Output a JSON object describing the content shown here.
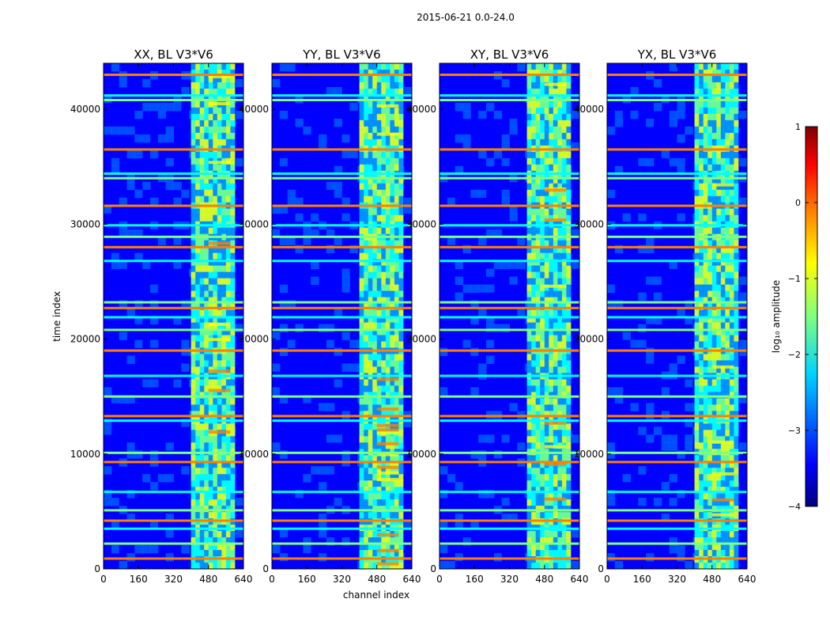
{
  "figure_title": "2015-06-21 0.0-24.0",
  "colors": {
    "background": "#ffffff",
    "axes": "#000000",
    "colormap": [
      "#00007f",
      "#0000ff",
      "#007fff",
      "#00ffff",
      "#7fff7f",
      "#ffff00",
      "#ff7f00",
      "#ff0000",
      "#7f0000"
    ]
  },
  "chart_data": {
    "type": "heatmap",
    "xlabel": "channel index",
    "ylabel": "time index",
    "xlim": [
      0,
      640
    ],
    "ylim": [
      0,
      44000
    ],
    "xticks": [
      0,
      160,
      320,
      480,
      640
    ],
    "yticks": [
      0,
      10000,
      20000,
      30000,
      40000
    ],
    "panels": [
      {
        "title": "XX, BL V3*V6",
        "polarization": "XX"
      },
      {
        "title": "YY, BL V3*V6",
        "polarization": "YY"
      },
      {
        "title": "XY, BL V3*V6",
        "polarization": "XY"
      },
      {
        "title": "YX, BL V3*V6",
        "polarization": "YX"
      }
    ],
    "bright_channel_band": [
      400,
      600
    ],
    "hot_channel_band": [
      480,
      580
    ],
    "flagged_rows": [
      900,
      2200,
      3500,
      4200,
      5100,
      6700,
      9300,
      10100,
      12900,
      13300,
      15000,
      16800,
      19000,
      20800,
      21900,
      22700,
      23200,
      26800,
      28000,
      28900,
      29900,
      31600,
      34000,
      34400,
      36500,
      40800,
      41200,
      43000
    ],
    "colorbar": {
      "label": "log₁₀ amplitude",
      "range": [
        -4,
        1
      ],
      "ticks": [
        1,
        0,
        -1,
        -2,
        -3,
        -4
      ],
      "tick_labels": [
        "1",
        "0",
        "−1",
        "−2",
        "−3",
        "−4"
      ]
    }
  }
}
